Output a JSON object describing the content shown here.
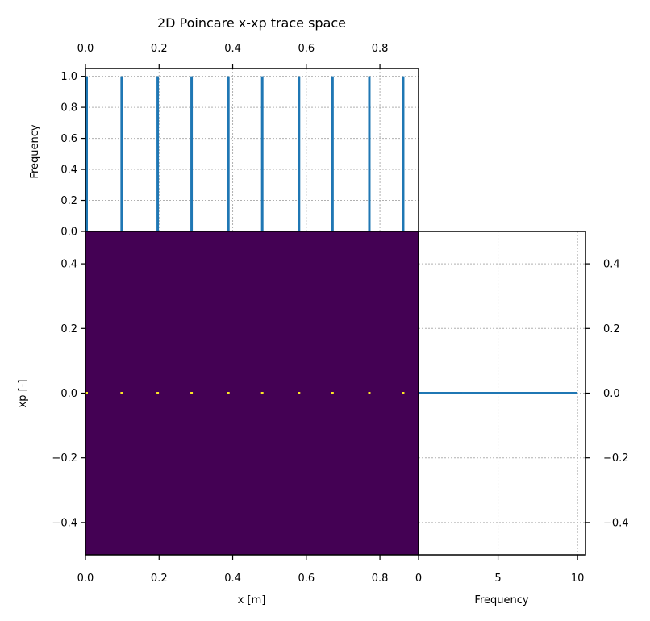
{
  "title": "2D Poincare x-xp trace space",
  "colors": {
    "hist": "#1f77b4",
    "background": "#440154",
    "points": "#fde725",
    "grid": "#b0b0b0"
  },
  "chart_data": [
    {
      "type": "bar",
      "panel": "top-histogram",
      "ylabel": "Frequency",
      "xlim": [
        0.0,
        0.905
      ],
      "ylim": [
        0.0,
        1.05
      ],
      "x_ticks": [
        0.0,
        0.2,
        0.4,
        0.6,
        0.8
      ],
      "y_ticks": [
        0.0,
        0.2,
        0.4,
        0.6,
        0.8,
        1.0
      ],
      "x": [
        0.0,
        0.095,
        0.193,
        0.285,
        0.385,
        0.477,
        0.577,
        0.668,
        0.768,
        0.86
      ],
      "values": [
        1,
        1,
        1,
        1,
        1,
        1,
        1,
        1,
        1,
        1
      ],
      "grid": true
    },
    {
      "type": "heatmap",
      "panel": "main-2d-histogram",
      "xlabel": "x [m]",
      "ylabel": "xp [-]",
      "xlim": [
        0.0,
        0.905
      ],
      "ylim": [
        -0.5,
        0.5
      ],
      "x_ticks": [
        0.0,
        0.2,
        0.4,
        0.6,
        0.8
      ],
      "y_ticks": [
        -0.4,
        -0.2,
        0.0,
        0.2,
        0.4
      ],
      "points": [
        {
          "x": 0.0,
          "y": 0.0
        },
        {
          "x": 0.095,
          "y": 0.0
        },
        {
          "x": 0.193,
          "y": 0.0
        },
        {
          "x": 0.285,
          "y": 0.0
        },
        {
          "x": 0.385,
          "y": 0.0
        },
        {
          "x": 0.477,
          "y": 0.0
        },
        {
          "x": 0.577,
          "y": 0.0
        },
        {
          "x": 0.668,
          "y": 0.0
        },
        {
          "x": 0.768,
          "y": 0.0
        },
        {
          "x": 0.86,
          "y": 0.0
        }
      ]
    },
    {
      "type": "bar",
      "panel": "right-histogram",
      "orientation": "horizontal",
      "xlabel": "Frequency",
      "xlim": [
        0,
        10.5
      ],
      "ylim": [
        -0.5,
        0.5
      ],
      "x_ticks": [
        0,
        5,
        10
      ],
      "y_ticks": [
        -0.4,
        -0.2,
        0.0,
        0.2,
        0.4
      ],
      "y": [
        0.0
      ],
      "values": [
        10
      ],
      "grid": true
    }
  ]
}
